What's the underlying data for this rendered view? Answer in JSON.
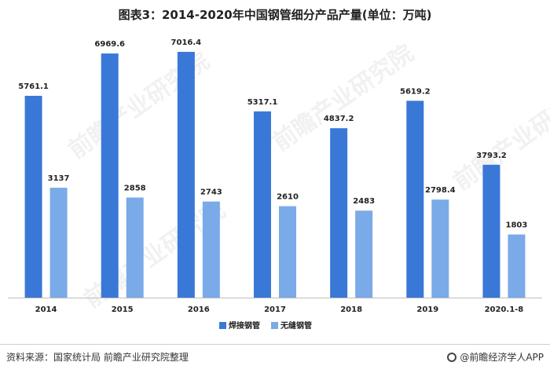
{
  "title": "图表3：2014-2020年中国钢管细分产品产量(单位：万吨)",
  "watermark": "前瞻产业研究院",
  "footer": {
    "source": "资料来源：国家统计局   前瞻产业研究院整理",
    "brand": "@前瞻经济学人APP"
  },
  "colors": {
    "welded": "#3a78d8",
    "seamless": "#7aaae8"
  },
  "chart_data": {
    "type": "bar",
    "title": "图表3：2014-2020年中国钢管细分产品产量(单位：万吨)",
    "xlabel": "",
    "ylabel": "",
    "ylim": [
      0,
      7600
    ],
    "grid": false,
    "legend_position": "bottom",
    "categories": [
      "2014",
      "2015",
      "2016",
      "2017",
      "2018",
      "2019",
      "2020.1-8"
    ],
    "series": [
      {
        "name": "焊接钢管",
        "values": [
          5761.1,
          6969.6,
          7016.4,
          5317.1,
          4837.2,
          5619.2,
          3793.2
        ],
        "labels": [
          "5761.1",
          "6969.6",
          "7016.4",
          "5317.1",
          "4837.2",
          "5619.2",
          "3793.2"
        ]
      },
      {
        "name": "无缝钢管",
        "values": [
          3137,
          2858,
          2743,
          2610,
          2483,
          2798.4,
          1803
        ],
        "labels": [
          "3137",
          "2858",
          "2743",
          "2610",
          "2483",
          "2798.4",
          "1803"
        ]
      }
    ]
  }
}
